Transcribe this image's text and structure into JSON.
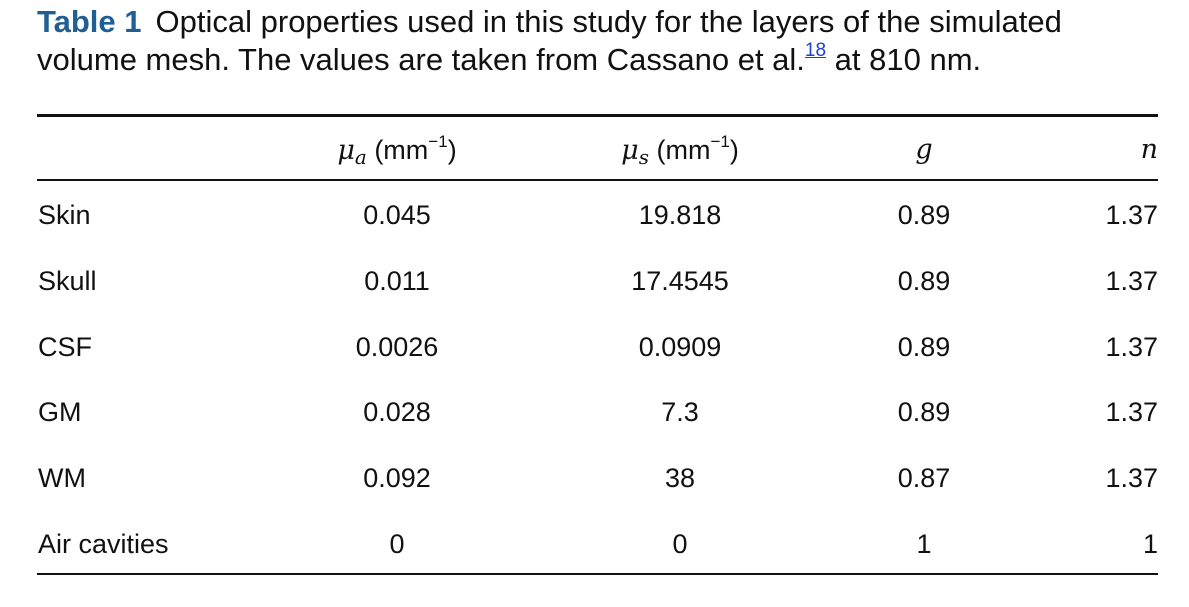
{
  "caption": {
    "label": "Table 1",
    "text_before_ref": "Optical properties used in this study for the layers of the simulated volume mesh. The values are taken from Cassano et al.",
    "ref": "18",
    "text_after_ref": " at 810 nm."
  },
  "table": {
    "headers": {
      "mu_a": {
        "symbol": "μ",
        "sub": "a",
        "unit_pre": " (mm",
        "unit_exp": "−1",
        "unit_post": ")"
      },
      "mu_s": {
        "symbol": "μ",
        "sub": "s",
        "unit_pre": " (mm",
        "unit_exp": "−1",
        "unit_post": ")"
      },
      "g": "g",
      "n": "n"
    },
    "rows": [
      {
        "layer": "Skin",
        "mu_a": "0.045",
        "mu_s": "19.818",
        "g": "0.89",
        "n": "1.37"
      },
      {
        "layer": "Skull",
        "mu_a": "0.011",
        "mu_s": "17.4545",
        "g": "0.89",
        "n": "1.37"
      },
      {
        "layer": "CSF",
        "mu_a": "0.0026",
        "mu_s": "0.0909",
        "g": "0.89",
        "n": "1.37"
      },
      {
        "layer": "GM",
        "mu_a": "0.028",
        "mu_s": "7.3",
        "g": "0.89",
        "n": "1.37"
      },
      {
        "layer": "WM",
        "mu_a": "0.092",
        "mu_s": "38",
        "g": "0.87",
        "n": "1.37"
      },
      {
        "layer": "Air cavities",
        "mu_a": "0",
        "mu_s": "0",
        "g": "1",
        "n": "1"
      }
    ]
  }
}
